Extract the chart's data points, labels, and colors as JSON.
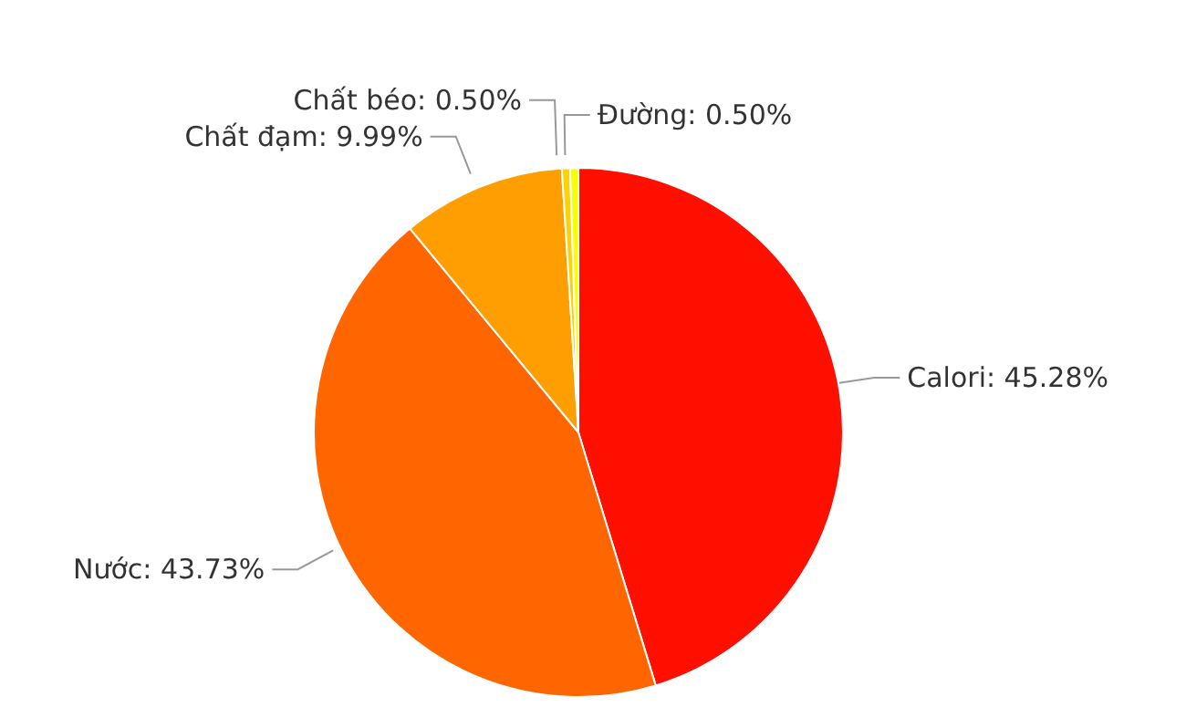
{
  "chart_data": {
    "type": "pie",
    "categories": [
      "Calori",
      "Nước",
      "Chất đạm",
      "Chất béo",
      "Đường"
    ],
    "values": [
      45.28,
      43.73,
      9.99,
      0.5,
      0.5
    ],
    "value_labels": [
      "45.28%",
      "43.73%",
      "9.99%",
      "0.50%",
      "0.50%"
    ],
    "colors": [
      "#ff0f00",
      "#ff6600",
      "#ff9e01",
      "#fcd202",
      "#f8ff01"
    ],
    "legend": false
  }
}
